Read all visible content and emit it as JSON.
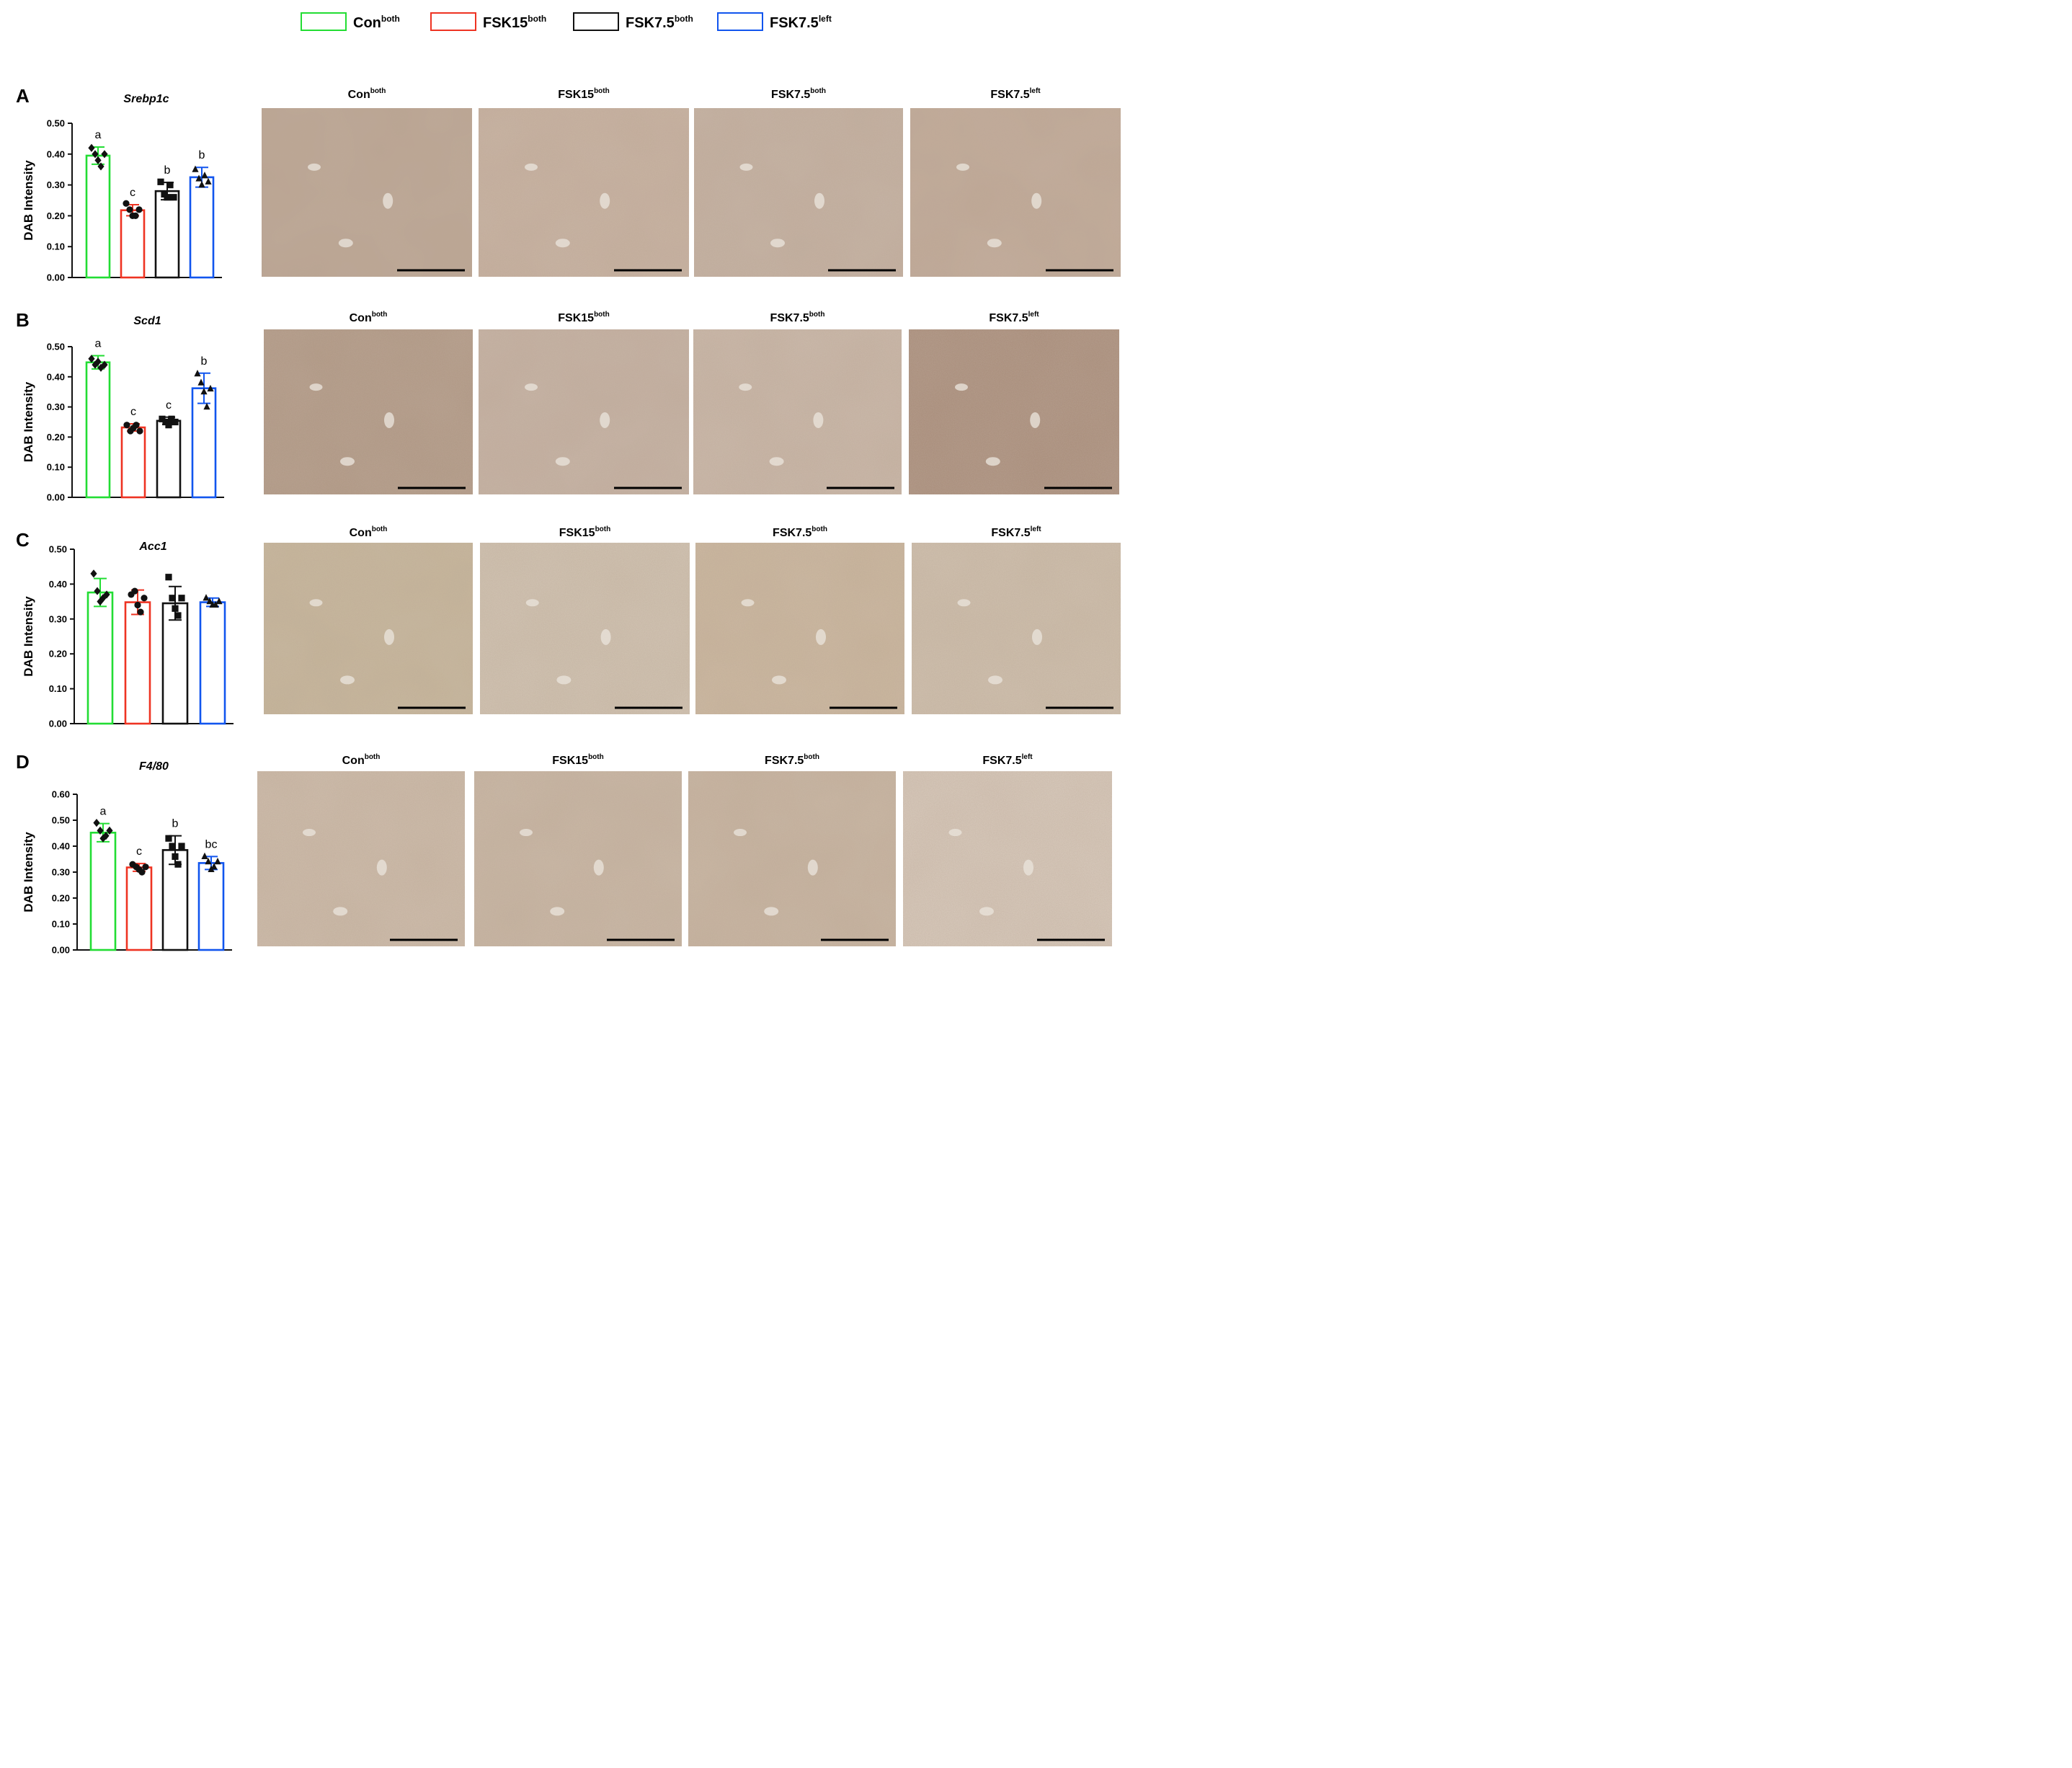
{
  "legend": [
    {
      "base": "Con",
      "sup": "both",
      "color": "#22dd33"
    },
    {
      "base": "FSK15",
      "sup": "both",
      "color": "#ee3322"
    },
    {
      "base": "FSK7.5",
      "sup": "both",
      "color": "#111111"
    },
    {
      "base": "FSK7.5",
      "sup": "left",
      "color": "#1155ee"
    }
  ],
  "micrograph_titles": [
    {
      "base": "Con",
      "sup": "both"
    },
    {
      "base": "FSK15",
      "sup": "both"
    },
    {
      "base": "FSK7.5",
      "sup": "both"
    },
    {
      "base": "FSK7.5",
      "sup": "left"
    }
  ],
  "chart_data": [
    {
      "panel": "A",
      "type": "bar",
      "title": "Srebp1c",
      "xlabel": "",
      "ylabel": "DAB Intensity",
      "ylim": [
        0,
        0.5
      ],
      "yticks": [
        "0.00",
        "0.10",
        "0.20",
        "0.30",
        "0.40",
        "0.50"
      ],
      "categories": [
        "Con both",
        "FSK15 both",
        "FSK7.5 both",
        "FSK7.5 left"
      ],
      "values": [
        0.395,
        0.218,
        0.28,
        0.325
      ],
      "errors": [
        0.028,
        0.018,
        0.028,
        0.032
      ],
      "points": [
        [
          0.42,
          0.4,
          0.38,
          0.36,
          0.4
        ],
        [
          0.24,
          0.22,
          0.2,
          0.2,
          0.22
        ],
        [
          0.31,
          0.27,
          0.26,
          0.3,
          0.26
        ],
        [
          0.35,
          0.32,
          0.3,
          0.33,
          0.31
        ]
      ],
      "markers": [
        "diamond",
        "circle",
        "square",
        "triangle"
      ],
      "significance": [
        "a",
        "c",
        "b",
        "b"
      ],
      "grid": false
    },
    {
      "panel": "B",
      "type": "bar",
      "title": "Scd1",
      "xlabel": "",
      "ylabel": "DAB Intensity",
      "ylim": [
        0,
        0.5
      ],
      "yticks": [
        "0.00",
        "0.10",
        "0.20",
        "0.30",
        "0.40",
        "0.50"
      ],
      "categories": [
        "Con both",
        "FSK15 both",
        "FSK7.5 both",
        "FSK7.5 left"
      ],
      "values": [
        0.448,
        0.232,
        0.254,
        0.362
      ],
      "errors": [
        0.022,
        0.012,
        0.012,
        0.05
      ],
      "points": [
        [
          0.46,
          0.44,
          0.45,
          0.43,
          0.44
        ],
        [
          0.24,
          0.22,
          0.23,
          0.24,
          0.22
        ],
        [
          0.26,
          0.25,
          0.24,
          0.26,
          0.25
        ],
        [
          0.41,
          0.38,
          0.35,
          0.3,
          0.36
        ]
      ],
      "markers": [
        "diamond",
        "circle",
        "square",
        "triangle"
      ],
      "significance": [
        "a",
        "c",
        "c",
        "b"
      ],
      "grid": false
    },
    {
      "panel": "C",
      "type": "bar",
      "title": "Acc1",
      "xlabel": "",
      "ylabel": "DAB Intensity",
      "ylim": [
        0,
        0.5
      ],
      "yticks": [
        "0.00",
        "0.10",
        "0.20",
        "0.30",
        "0.40",
        "0.50"
      ],
      "categories": [
        "Con both",
        "FSK15 both",
        "FSK7.5 both",
        "FSK7.5 left"
      ],
      "values": [
        0.376,
        0.348,
        0.345,
        0.348
      ],
      "errors": [
        0.04,
        0.035,
        0.048,
        0.012
      ],
      "points": [
        [
          0.43,
          0.38,
          0.35,
          0.36,
          0.37
        ],
        [
          0.37,
          0.38,
          0.34,
          0.32,
          0.36
        ],
        [
          0.42,
          0.36,
          0.33,
          0.31,
          0.36
        ],
        [
          0.36,
          0.35,
          0.34,
          0.34,
          0.35
        ]
      ],
      "markers": [
        "diamond",
        "circle",
        "square",
        "triangle"
      ],
      "significance": [
        "",
        "",
        "",
        ""
      ],
      "grid": false
    },
    {
      "panel": "D",
      "type": "bar",
      "title": "F4/80",
      "xlabel": "",
      "ylabel": "DAB Intensity",
      "ylim": [
        0,
        0.6
      ],
      "yticks": [
        "0.00",
        "0.10",
        "0.20",
        "0.30",
        "0.40",
        "0.50",
        "0.60"
      ],
      "categories": [
        "Con both",
        "FSK15 both",
        "FSK7.5 both",
        "FSK7.5 left"
      ],
      "values": [
        0.452,
        0.318,
        0.385,
        0.335
      ],
      "errors": [
        0.035,
        0.015,
        0.055,
        0.025
      ],
      "points": [
        [
          0.49,
          0.46,
          0.43,
          0.44,
          0.46
        ],
        [
          0.33,
          0.32,
          0.31,
          0.3,
          0.32
        ],
        [
          0.43,
          0.4,
          0.36,
          0.33,
          0.4
        ],
        [
          0.36,
          0.34,
          0.31,
          0.32,
          0.34
        ]
      ],
      "markers": [
        "diamond",
        "circle",
        "square",
        "triangle"
      ],
      "significance": [
        "a",
        "c",
        "b",
        "bc"
      ],
      "grid": false
    }
  ]
}
